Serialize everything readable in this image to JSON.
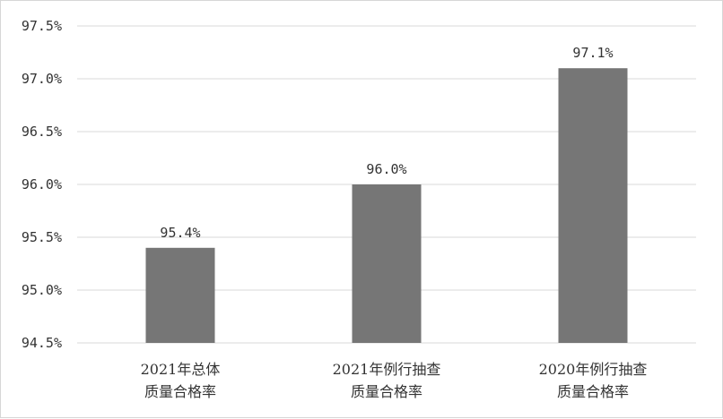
{
  "chart_data": {
    "type": "bar",
    "title": "",
    "xlabel": "",
    "ylabel": "",
    "categories": [
      [
        "2021年总体",
        "质量合格率"
      ],
      [
        "2021年例行抽查",
        "质量合格率"
      ],
      [
        "2020年例行抽查",
        "质量合格率"
      ]
    ],
    "values": [
      95.4,
      96.0,
      97.1
    ],
    "data_labels": [
      "95.4%",
      "96.0%",
      "97.1%"
    ],
    "ylim": [
      94.5,
      97.5
    ],
    "yticks": [
      94.5,
      95.0,
      95.5,
      96.0,
      96.5,
      97.0,
      97.5
    ],
    "ytick_labels": [
      "94.5%",
      "95.0%",
      "95.5%",
      "96.0%",
      "96.5%",
      "97.0%",
      "97.5%"
    ],
    "grid": true,
    "legend": "none",
    "colors": {
      "bar": "#767676",
      "grid": "#d9d9d9",
      "text": "#333333"
    }
  }
}
